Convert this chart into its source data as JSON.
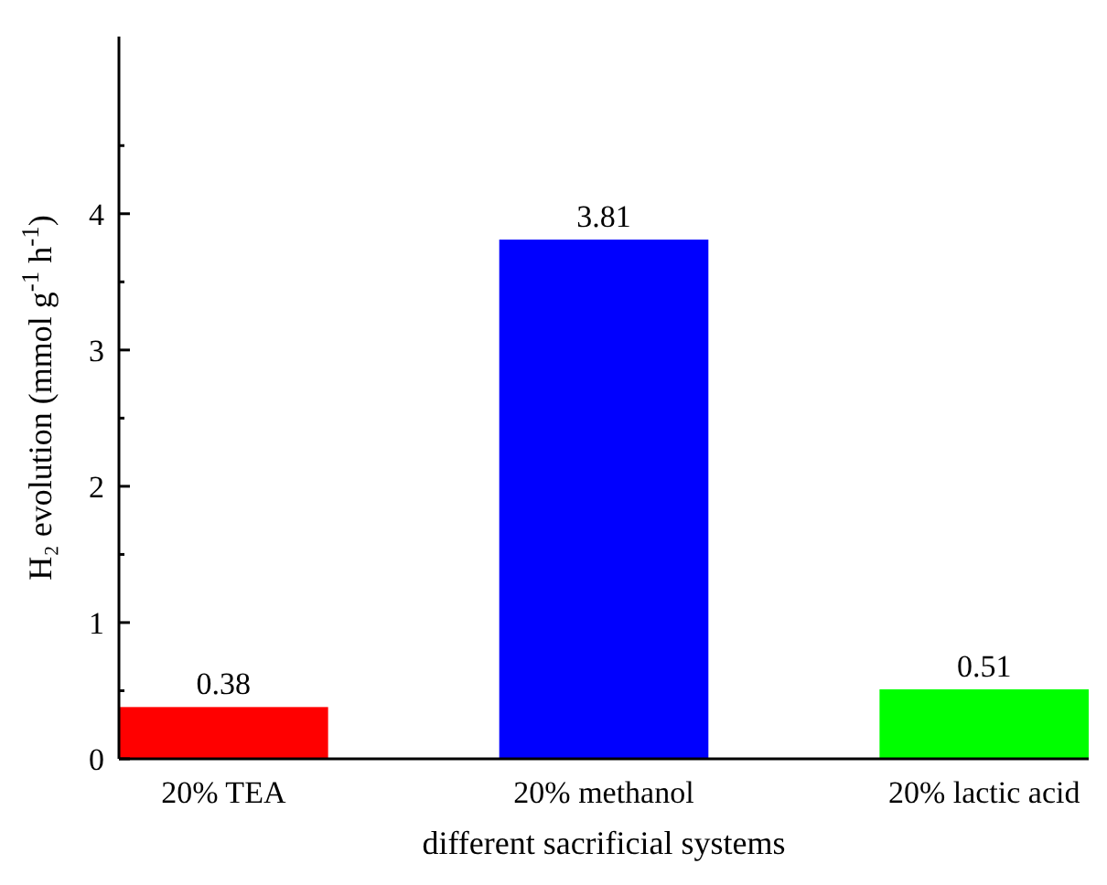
{
  "chart_data": {
    "type": "bar",
    "xlabel": "different sacrificial systems",
    "ylabel": "H₂ evolution (mmol g$^{-1}$ h$^{-1}$)",
    "categories": [
      "20% TEA",
      "20% methanol",
      "20% lactic acid"
    ],
    "values": [
      0.38,
      3.81,
      0.51
    ],
    "colors": [
      "#ff0000",
      "#0000ff",
      "#00ff00"
    ],
    "ylim": [
      0,
      5.3
    ],
    "yticks": [
      0,
      1,
      2,
      3,
      4
    ],
    "data_labels": true
  }
}
